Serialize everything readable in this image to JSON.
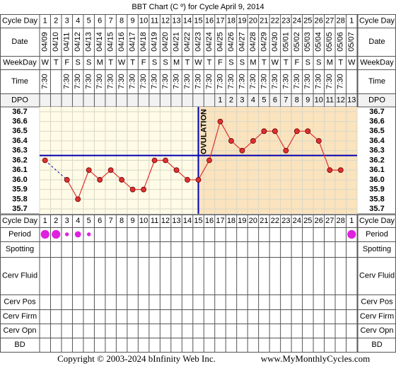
{
  "title": "BBT Chart (C º) for Cycle April 9, 2014",
  "labels": {
    "cycle_day": "Cycle Day",
    "date": "Date",
    "weekday": "WeekDay",
    "time": "Time",
    "dpo": "DPO",
    "period": "Period",
    "spotting": "Spotting",
    "cerv_fluid": "Cerv Fluid",
    "cerv_pos": "Cerv Pos",
    "cerv_firm": "Cerv Firm",
    "cerv_opn": "Cerv Opn",
    "bd": "BD"
  },
  "chart_data": {
    "type": "line",
    "categories": [
      "04/09",
      "04/10",
      "04/11",
      "04/12",
      "04/13",
      "04/14",
      "04/15",
      "04/16",
      "04/17",
      "04/18",
      "04/19",
      "04/20",
      "04/21",
      "04/22",
      "04/23",
      "04/24",
      "04/25",
      "04/26",
      "04/27",
      "04/28",
      "04/29",
      "04/30",
      "05/01",
      "05/02",
      "05/03",
      "05/04",
      "05/05",
      "05/06",
      "05/07"
    ],
    "cycle_days": [
      1,
      2,
      3,
      4,
      5,
      6,
      7,
      8,
      9,
      10,
      11,
      12,
      13,
      14,
      15,
      16,
      17,
      18,
      19,
      20,
      21,
      22,
      23,
      24,
      25,
      26,
      27,
      28,
      1
    ],
    "weekdays": [
      "W",
      "T",
      "F",
      "S",
      "S",
      "M",
      "T",
      "W",
      "T",
      "F",
      "S",
      "S",
      "M",
      "T",
      "W",
      "T",
      "F",
      "S",
      "S",
      "M",
      "T",
      "W",
      "T",
      "F",
      "S",
      "S",
      "M",
      "T",
      "W"
    ],
    "times": [
      "7:30",
      null,
      "7:30",
      "7:30",
      "7:30",
      "7:30",
      "7:30",
      "7:30",
      "7:30",
      "7:30",
      "7:30",
      "7:30",
      "7:30",
      "7:30",
      "7:30",
      "7:30",
      "7:30",
      "7:30",
      "7:30",
      "7:30",
      "7:30",
      "7:30",
      "7:30",
      "7:30",
      "7:30",
      "7:30",
      "7:30",
      "7:30",
      null
    ],
    "dpo": [
      null,
      null,
      null,
      null,
      null,
      null,
      null,
      null,
      null,
      null,
      null,
      null,
      null,
      null,
      null,
      null,
      1,
      2,
      3,
      4,
      5,
      6,
      7,
      8,
      9,
      10,
      11,
      12,
      13
    ],
    "values": [
      36.2,
      null,
      36.0,
      35.8,
      36.1,
      36.0,
      36.1,
      36.0,
      35.9,
      35.9,
      36.2,
      36.2,
      36.1,
      36.0,
      36.0,
      36.2,
      36.6,
      36.4,
      36.3,
      36.4,
      36.5,
      36.5,
      36.3,
      36.5,
      36.5,
      36.4,
      36.1,
      36.1,
      null
    ],
    "color": "#e03030",
    "period": [
      3,
      3,
      1,
      2,
      1,
      null,
      null,
      null,
      null,
      null,
      null,
      null,
      null,
      null,
      null,
      null,
      null,
      null,
      null,
      null,
      null,
      null,
      null,
      null,
      null,
      null,
      null,
      null,
      3
    ],
    "period_color": "#e020e0",
    "coverline": 36.25,
    "coverline_color": "#0000b0",
    "ovulation_day": 15,
    "ovulation_label": "OVULATION",
    "ylim": [
      35.65,
      36.75
    ],
    "yticks": [
      36.7,
      36.6,
      36.5,
      36.4,
      36.3,
      36.2,
      36.1,
      {
        "value": 36,
        "label": "36.0"
      },
      35.9,
      35.8,
      35.7
    ],
    "grid": true
  },
  "footer": {
    "copyright": "Copyright © 2003-2024 bInfinity Web Inc.",
    "url": "www.MyMonthlyCycles.com"
  }
}
